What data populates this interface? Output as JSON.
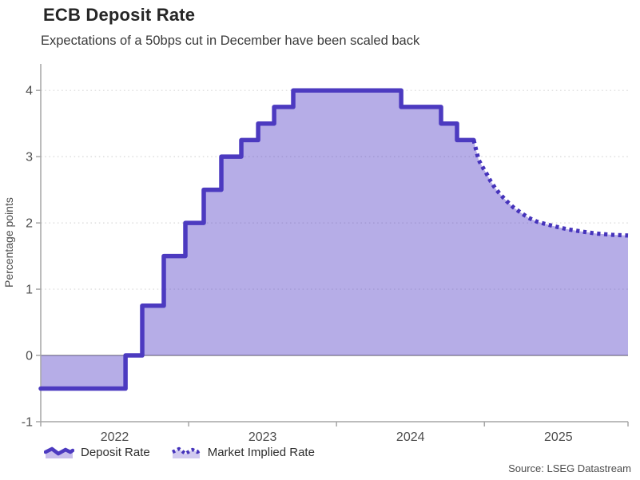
{
  "header": {
    "title": "ECB Deposit Rate",
    "subtitle": "Expectations of a 50bps cut in December have been scaled back"
  },
  "source": "Source: LSEG Datastream",
  "legend": [
    {
      "label": "Deposit Rate",
      "style": "solid"
    },
    {
      "label": "Market Implied Rate",
      "style": "dotted"
    }
  ],
  "colors": {
    "line": "#4c3ac0",
    "implied": "#4533bb",
    "fill_area": "rgba(82,60,198,0.42)",
    "fill_solid": "#b9ade6",
    "grid": "#d9d9d9",
    "axis": "#a6a6a6",
    "zero_line": "#8a8a8a",
    "tick_text": "#4d4d4d",
    "title_text": "#262626",
    "subtitle_text": "#3a3a3a",
    "legend_text": "#2e2e2e"
  },
  "chart_data": {
    "type": "line",
    "title": "ECB Deposit Rate",
    "xlabel": "",
    "ylabel": "Percentage points",
    "xlim": [
      2022,
      2025.971
    ],
    "ylim": [
      -1,
      4.4
    ],
    "y_ticks": [
      -1,
      0,
      1,
      2,
      3,
      4
    ],
    "x_ticks": {
      "boundaries": [
        2022,
        2023,
        2024,
        2025,
        2025.971
      ],
      "labels": [
        "2022",
        "2023",
        "2024",
        "2025"
      ],
      "centers": [
        2022.5,
        2023.5,
        2024.5,
        2025.5
      ]
    },
    "grid": "dotted horizontal",
    "legend_position": "bottom-left",
    "fill_between_line_and_zero": true,
    "series": [
      {
        "name": "Deposit Rate",
        "style": "solid-step",
        "points": [
          [
            2022.0,
            -0.5
          ],
          [
            2022.573,
            0.0
          ],
          [
            2022.686,
            0.75
          ],
          [
            2022.832,
            1.5
          ],
          [
            2022.978,
            2.0
          ],
          [
            2023.102,
            2.5
          ],
          [
            2023.221,
            3.0
          ],
          [
            2023.356,
            3.25
          ],
          [
            2023.47,
            3.5
          ],
          [
            2023.578,
            3.75
          ],
          [
            2023.707,
            4.0
          ],
          [
            2024.437,
            3.75
          ],
          [
            2024.707,
            3.5
          ],
          [
            2024.815,
            3.25
          ],
          [
            2024.928,
            3.25
          ]
        ]
      },
      {
        "name": "Market Implied Rate",
        "style": "dotted",
        "points": [
          [
            2024.928,
            3.25
          ],
          [
            2024.944,
            3.1
          ],
          [
            2024.961,
            2.95
          ],
          [
            2024.988,
            2.84
          ],
          [
            2025.015,
            2.74
          ],
          [
            2025.042,
            2.63
          ],
          [
            2025.074,
            2.52
          ],
          [
            2025.112,
            2.42
          ],
          [
            2025.15,
            2.33
          ],
          [
            2025.193,
            2.24
          ],
          [
            2025.242,
            2.16
          ],
          [
            2025.296,
            2.08
          ],
          [
            2025.355,
            2.02
          ],
          [
            2025.42,
            1.98
          ],
          [
            2025.49,
            1.94
          ],
          [
            2025.571,
            1.9
          ],
          [
            2025.658,
            1.87
          ],
          [
            2025.755,
            1.84
          ],
          [
            2025.863,
            1.82
          ],
          [
            2025.971,
            1.81
          ]
        ]
      }
    ]
  }
}
